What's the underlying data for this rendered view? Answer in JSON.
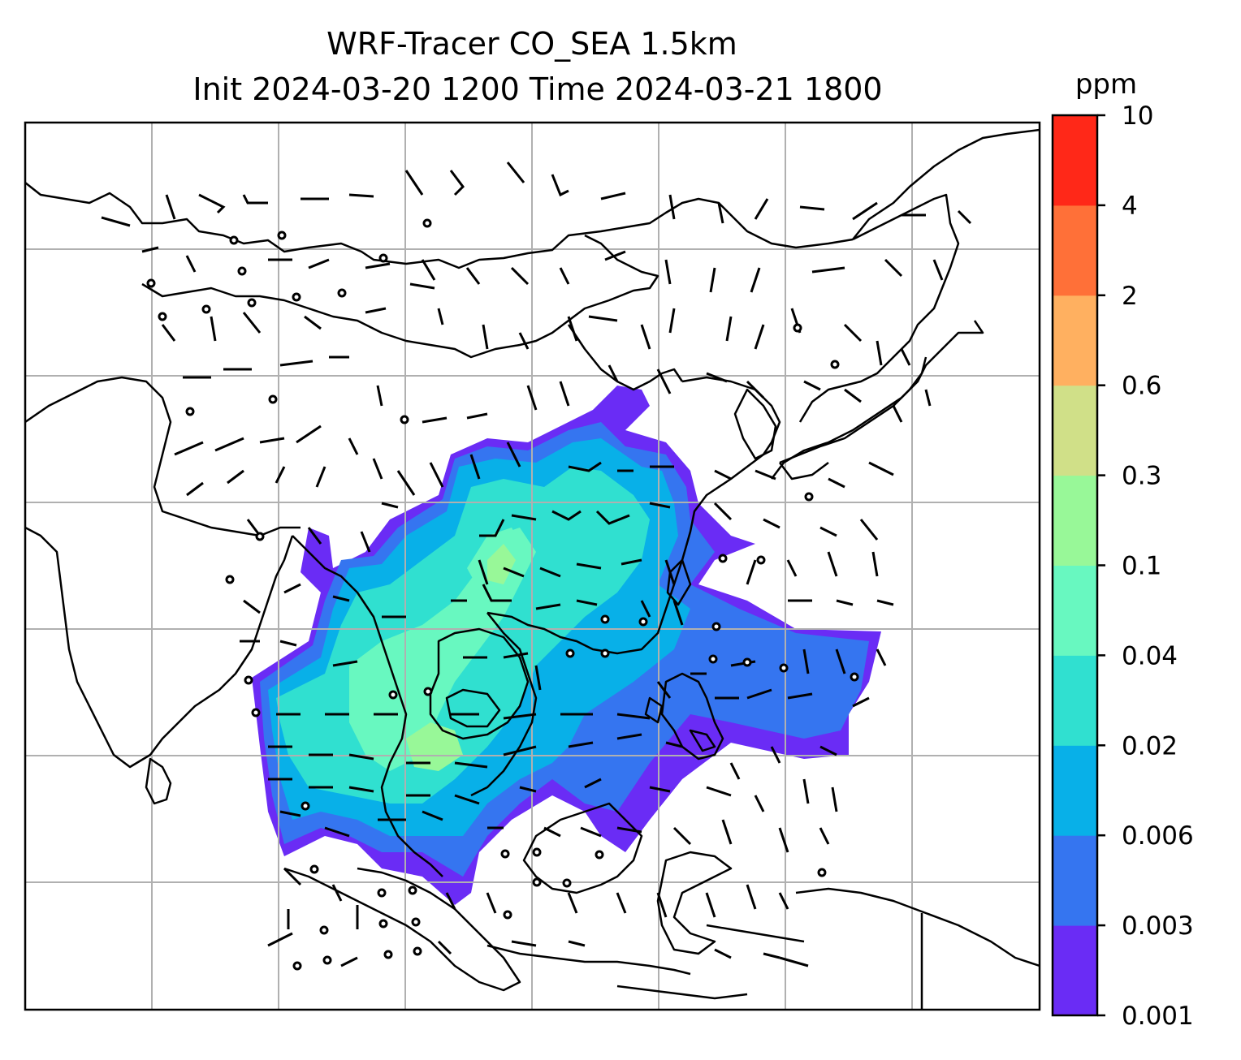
{
  "figure": {
    "title_line1": "WRF-Tracer CO_SEA 1.5km",
    "title_line2": "Init 2024-03-20 1200 Time 2024-03-21 1800"
  },
  "map": {
    "type": "filled contour map with wind barbs and coastlines",
    "field": "CO tracer concentration",
    "gridlines": true,
    "gridline_color": "#b0b0b0",
    "coastline_color": "#000000"
  },
  "colorbar": {
    "unit": "ppm",
    "scale": "discrete levels",
    "levels": [
      "0.001",
      "0.003",
      "0.006",
      "0.02",
      "0.04",
      "0.1",
      "0.3",
      "0.6",
      "2",
      "4",
      "10"
    ],
    "colors": [
      "#6a2cf5",
      "#3575f0",
      "#08b0e8",
      "#30e0d0",
      "#68f8c0",
      "#98f898",
      "#d0e088",
      "#ffb060",
      "#ff7038",
      "#ff2818"
    ]
  }
}
